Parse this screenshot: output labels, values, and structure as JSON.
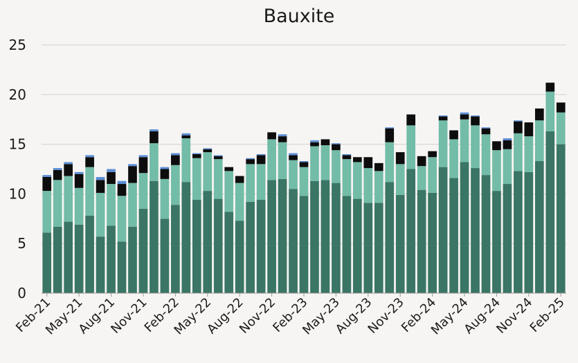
{
  "chart_data": {
    "type": "bar",
    "stacked": true,
    "title": "Bauxite",
    "xlabel": "",
    "ylabel": "",
    "ylim": [
      0,
      25
    ],
    "yticks": [
      0,
      5,
      10,
      15,
      20,
      25
    ],
    "grid": "horizontal",
    "legend": "none",
    "categories": [
      "Feb-21",
      "Mar-21",
      "Apr-21",
      "May-21",
      "Jun-21",
      "Jul-21",
      "Aug-21",
      "Sep-21",
      "Oct-21",
      "Nov-21",
      "Dec-21",
      "Jan-22",
      "Feb-22",
      "Mar-22",
      "Apr-22",
      "May-22",
      "Jun-22",
      "Jul-22",
      "Aug-22",
      "Sep-22",
      "Oct-22",
      "Nov-22",
      "Dec-22",
      "Jan-23",
      "Feb-23",
      "Mar-23",
      "Apr-23",
      "May-23",
      "Jun-23",
      "Jul-23",
      "Aug-23",
      "Sep-23",
      "Oct-23",
      "Nov-23",
      "Dec-23",
      "Jan-24",
      "Feb-24",
      "Mar-24",
      "Apr-24",
      "May-24",
      "Jun-24",
      "Jul-24",
      "Aug-24",
      "Sep-24",
      "Oct-24",
      "Nov-24",
      "Dec-24",
      "Jan-25",
      "Feb-25"
    ],
    "tick_labels": [
      "Feb-21",
      "May-21",
      "Aug-21",
      "Nov-21",
      "Feb-22",
      "May-22",
      "Aug-22",
      "Nov-22",
      "Feb-23",
      "May-23",
      "Aug-23",
      "Nov-23",
      "Feb-24",
      "May-24",
      "Aug-24",
      "Nov-24",
      "Feb-25"
    ],
    "series": [
      {
        "color": "#3a7565",
        "values": [
          6.1,
          6.7,
          7.2,
          6.9,
          7.8,
          5.7,
          6.8,
          5.2,
          6.7,
          8.5,
          11.3,
          7.5,
          8.9,
          11.2,
          9.4,
          10.3,
          9.5,
          8.2,
          7.3,
          9.2,
          9.4,
          11.4,
          11.5,
          10.5,
          9.8,
          11.3,
          11.4,
          11.1,
          9.8,
          9.5,
          9.1,
          9.1,
          11.2,
          9.9,
          12.5,
          10.4,
          10.1,
          12.7,
          11.6,
          13.2,
          12.6,
          11.9,
          10.3,
          11.0,
          12.3,
          12.2,
          13.3,
          16.3,
          15.0
        ]
      },
      {
        "color": "#72bca8",
        "values": [
          4.2,
          4.7,
          4.6,
          3.7,
          4.9,
          4.4,
          4.2,
          4.6,
          4.4,
          3.6,
          3.8,
          4.0,
          4.0,
          4.4,
          4.2,
          3.9,
          4.0,
          4.1,
          3.8,
          3.8,
          3.6,
          4.1,
          3.7,
          2.9,
          2.9,
          3.5,
          3.5,
          3.3,
          3.7,
          3.7,
          3.5,
          3.2,
          4.0,
          3.1,
          4.4,
          2.4,
          3.6,
          4.7,
          3.9,
          4.3,
          4.3,
          4.1,
          4.1,
          3.5,
          3.8,
          3.6,
          4.1,
          4.0,
          3.2
        ]
      },
      {
        "color": "#0d0d0d",
        "values": [
          1.4,
          1.0,
          1.2,
          1.4,
          1.0,
          1.3,
          1.2,
          1.2,
          1.7,
          1.6,
          1.2,
          1.0,
          1.0,
          0.3,
          0.4,
          0.3,
          0.3,
          0.4,
          0.7,
          0.5,
          0.9,
          0.7,
          0.6,
          0.5,
          0.5,
          0.4,
          0.6,
          0.6,
          0.4,
          0.5,
          1.1,
          0.8,
          1.4,
          1.2,
          1.1,
          1.0,
          0.6,
          0.4,
          0.9,
          0.5,
          0.9,
          0.6,
          0.9,
          0.9,
          1.2,
          1.4,
          1.2,
          0.9,
          1.0
        ]
      },
      {
        "color": "#5b8fd6",
        "values": [
          0.2,
          0.2,
          0.2,
          0.2,
          0.2,
          0.3,
          0.3,
          0.3,
          0.2,
          0.2,
          0.2,
          0.2,
          0.2,
          0.2,
          0.1,
          0.1,
          0.1,
          0.0,
          0.0,
          0.1,
          0.1,
          0.0,
          0.2,
          0.2,
          0.1,
          0.2,
          0.0,
          0.1,
          0.1,
          0.0,
          0.0,
          0.0,
          0.1,
          0.0,
          0.0,
          0.0,
          0.0,
          0.1,
          0.0,
          0.2,
          0.1,
          0.1,
          0.0,
          0.2,
          0.1,
          0.0,
          0.0,
          0.0,
          0.0
        ]
      }
    ]
  }
}
